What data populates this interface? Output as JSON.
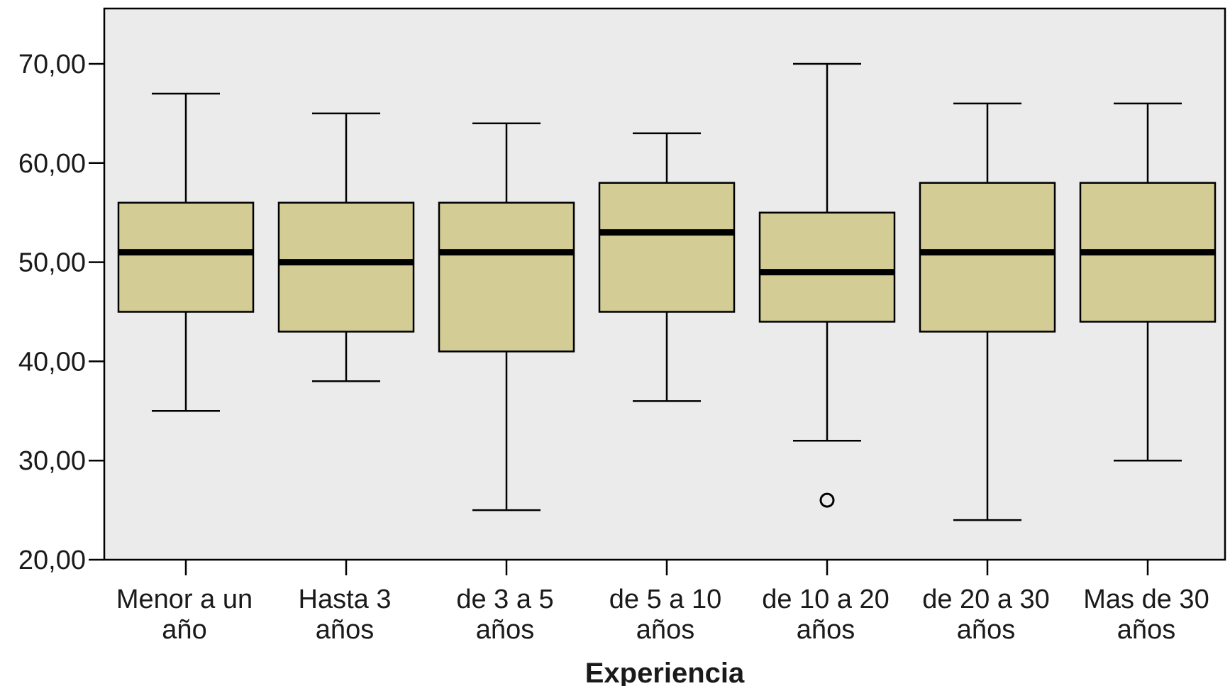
{
  "chart_data": {
    "type": "boxplot",
    "xlabel": "Experiencia",
    "ylabel": "",
    "ylim": [
      20,
      75
    ],
    "yticks": [
      20,
      30,
      40,
      50,
      60,
      70
    ],
    "ytick_labels": [
      "20,00",
      "30,00",
      "40,00",
      "50,00",
      "60,00",
      "70,00"
    ],
    "grid": false,
    "colors": {
      "plot_bg": "#ebebeb",
      "box_fill": "#d3cd95",
      "stroke": "#000000"
    },
    "categories": [
      [
        "Menor a  un",
        "año"
      ],
      [
        "Hasta 3",
        "años"
      ],
      [
        "de  3 a 5",
        "años"
      ],
      [
        "de  5 a 10",
        "años"
      ],
      [
        "de  10 a 20",
        "años"
      ],
      [
        "de  20 a 30",
        "años"
      ],
      [
        "Mas de  30",
        "años"
      ]
    ],
    "boxes": [
      {
        "min": 35,
        "q1": 45,
        "median": 51,
        "q3": 56,
        "max": 67,
        "outliers": []
      },
      {
        "min": 38,
        "q1": 43,
        "median": 50,
        "q3": 56,
        "max": 65,
        "outliers": []
      },
      {
        "min": 25,
        "q1": 41,
        "median": 51,
        "q3": 56,
        "max": 64,
        "outliers": []
      },
      {
        "min": 36,
        "q1": 45,
        "median": 53,
        "q3": 58,
        "max": 63,
        "outliers": []
      },
      {
        "min": 32,
        "q1": 44,
        "median": 49,
        "q3": 55,
        "max": 70,
        "outliers": [
          26
        ]
      },
      {
        "min": 24,
        "q1": 43,
        "median": 51,
        "q3": 58,
        "max": 66,
        "outliers": []
      },
      {
        "min": 30,
        "q1": 44,
        "median": 51,
        "q3": 58,
        "max": 66,
        "outliers": []
      }
    ]
  }
}
